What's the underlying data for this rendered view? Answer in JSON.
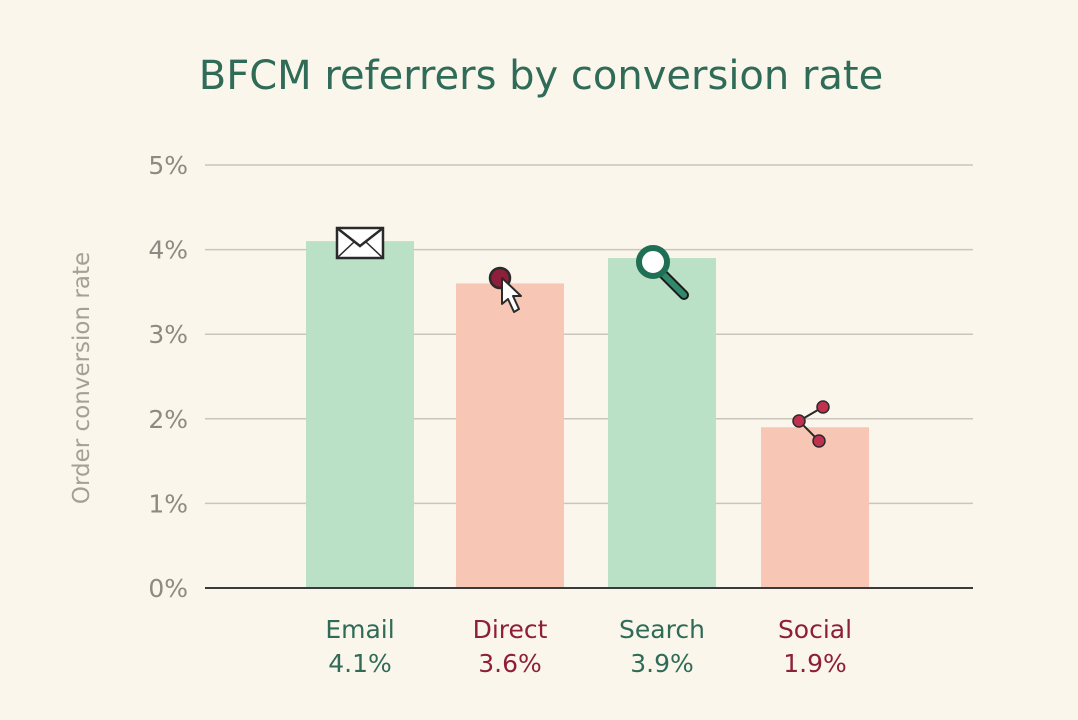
{
  "chart_data": {
    "type": "bar",
    "title": "BFCM referrers by conversion rate",
    "xlabel": "",
    "ylabel": "Order conversion rate",
    "ylim": [
      0,
      5
    ],
    "yticks": [
      "0%",
      "1%",
      "2%",
      "3%",
      "4%",
      "5%"
    ],
    "grid": true,
    "categories": [
      "Email",
      "Direct",
      "Search",
      "Social"
    ],
    "values": [
      4.1,
      3.6,
      3.9,
      1.9
    ],
    "value_labels": [
      "4.1%",
      "3.6%",
      "3.9%",
      "1.9%"
    ],
    "icons": [
      "envelope-icon",
      "cursor-click-icon",
      "magnifier-icon",
      "share-icon"
    ]
  },
  "colors": {
    "background": "#faf6ec",
    "title": "#2f6b57",
    "green_bar": "#bae0c6",
    "salmon_bar": "#f8c6b4",
    "green_text": "#2f6b57",
    "red_text": "#8e1f3a",
    "grid": "#c9c6ba",
    "axis": "#3a3a3a"
  }
}
